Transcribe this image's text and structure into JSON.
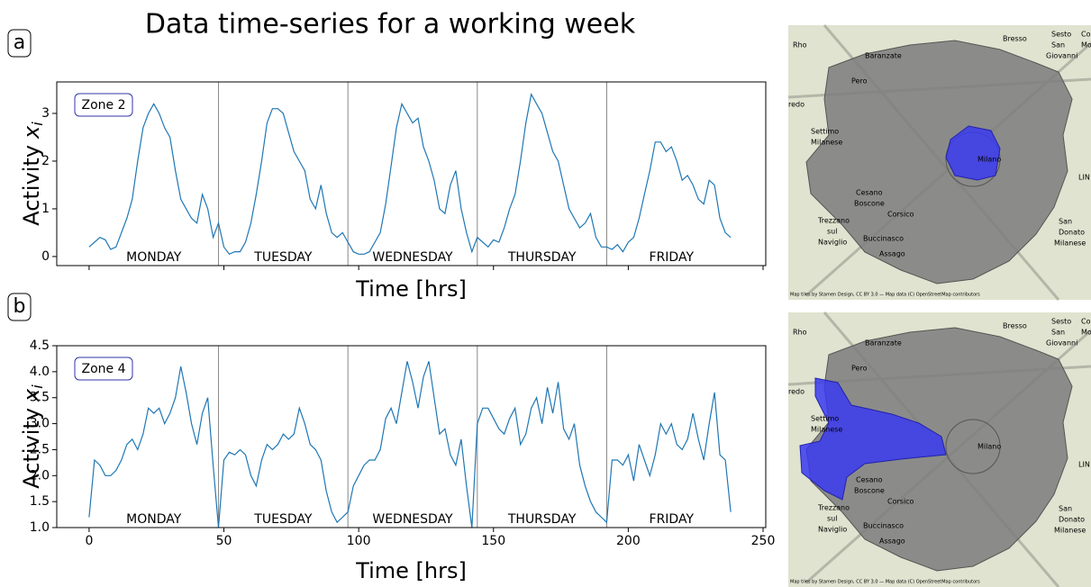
{
  "title": "Data time-series for a working week",
  "panel_labels": [
    "a",
    "b"
  ],
  "chart_data": [
    {
      "type": "line",
      "annotation": "Zone 2",
      "xlabel": "Time [hrs]",
      "ylabel": "Activity",
      "ylabel_var": "x",
      "ylabel_sub": "i",
      "color": "#1f77b4",
      "xlim": [
        -12,
        251
      ],
      "ylim": [
        -0.19,
        3.66
      ],
      "xticks": [
        0,
        50,
        100,
        150,
        200,
        250
      ],
      "show_xtick_labels": false,
      "yticks": [
        0,
        1,
        2,
        3
      ],
      "dividers": [
        48,
        96,
        144,
        192
      ],
      "day_labels": [
        "MONDAY",
        "TUESDAY",
        "WEDNESDAY",
        "THURSDAY",
        "FRIDAY"
      ],
      "x": [
        0,
        2,
        4,
        6,
        8,
        10,
        12,
        14,
        16,
        18,
        20,
        22,
        24,
        26,
        28,
        30,
        32,
        34,
        36,
        38,
        40,
        42,
        44,
        46,
        48,
        50,
        52,
        54,
        56,
        58,
        60,
        62,
        64,
        66,
        68,
        70,
        72,
        74,
        76,
        78,
        80,
        82,
        84,
        86,
        88,
        90,
        92,
        94,
        96,
        98,
        100,
        102,
        104,
        106,
        108,
        110,
        112,
        114,
        116,
        118,
        120,
        122,
        124,
        126,
        128,
        130,
        132,
        134,
        136,
        138,
        140,
        142,
        144,
        146,
        148,
        150,
        152,
        154,
        156,
        158,
        160,
        162,
        164,
        166,
        168,
        170,
        172,
        174,
        176,
        178,
        180,
        182,
        184,
        186,
        188,
        190,
        192,
        194,
        196,
        198,
        200,
        202,
        204,
        206,
        208,
        210,
        212,
        214,
        216,
        218,
        220,
        222,
        224,
        226,
        228,
        230,
        232,
        234,
        236,
        238
      ],
      "values": [
        0.2,
        0.3,
        0.4,
        0.35,
        0.15,
        0.2,
        0.5,
        0.8,
        1.2,
        2.0,
        2.7,
        3.0,
        3.2,
        3.0,
        2.7,
        2.5,
        1.8,
        1.2,
        1.0,
        0.8,
        0.7,
        1.3,
        1.0,
        0.4,
        0.7,
        0.2,
        0.05,
        0.1,
        0.1,
        0.3,
        0.7,
        1.3,
        2.0,
        2.8,
        3.1,
        3.1,
        3.0,
        2.6,
        2.2,
        2.0,
        1.8,
        1.2,
        1.0,
        1.5,
        0.9,
        0.5,
        0.4,
        0.5,
        0.3,
        0.1,
        0.05,
        0.05,
        0.1,
        0.3,
        0.5,
        1.1,
        1.9,
        2.7,
        3.2,
        3.0,
        2.8,
        2.9,
        2.3,
        2.0,
        1.6,
        1.0,
        0.9,
        1.5,
        1.8,
        1.0,
        0.5,
        0.1,
        0.4,
        0.3,
        0.2,
        0.35,
        0.3,
        0.6,
        1.0,
        1.3,
        2.0,
        2.8,
        3.4,
        3.2,
        3.0,
        2.6,
        2.2,
        2.0,
        1.5,
        1.0,
        0.8,
        0.6,
        0.7,
        0.9,
        0.4,
        0.2,
        0.2,
        0.15,
        0.25,
        0.1,
        0.3,
        0.4,
        0.8,
        1.3,
        1.8,
        2.4,
        2.4,
        2.2,
        2.3,
        2.0,
        1.6,
        1.7,
        1.5,
        1.2,
        1.1,
        1.6,
        1.5,
        0.8,
        0.5,
        0.4
      ]
    },
    {
      "type": "line",
      "annotation": "Zone 4",
      "xlabel": "Time [hrs]",
      "ylabel": "Activity",
      "ylabel_var": "x",
      "ylabel_sub": "i",
      "color": "#1f77b4",
      "xlim": [
        -12,
        251
      ],
      "ylim": [
        1.0,
        4.5
      ],
      "xticks": [
        0,
        50,
        100,
        150,
        200,
        250
      ],
      "show_xtick_labels": true,
      "yticks": [
        {
          "value": 1,
          "label": "1.0"
        },
        1.5,
        {
          "value": 2,
          "label": "2.0"
        },
        2.5,
        {
          "value": 3,
          "label": "3.0"
        },
        3.5,
        {
          "value": 4,
          "label": "4.0"
        },
        4.5
      ],
      "dividers": [
        48,
        96,
        144,
        192
      ],
      "day_labels": [
        "MONDAY",
        "TUESDAY",
        "WEDNESDAY",
        "THURSDAY",
        "FRIDAY"
      ],
      "x": [
        0,
        2,
        4,
        6,
        8,
        10,
        12,
        14,
        16,
        18,
        20,
        22,
        24,
        26,
        28,
        30,
        32,
        34,
        36,
        38,
        40,
        42,
        44,
        46,
        48,
        50,
        52,
        54,
        56,
        58,
        60,
        62,
        64,
        66,
        68,
        70,
        72,
        74,
        76,
        78,
        80,
        82,
        84,
        86,
        88,
        90,
        92,
        94,
        96,
        98,
        100,
        102,
        104,
        106,
        108,
        110,
        112,
        114,
        116,
        118,
        120,
        122,
        124,
        126,
        128,
        130,
        132,
        134,
        136,
        138,
        140,
        142,
        144,
        146,
        148,
        150,
        152,
        154,
        156,
        158,
        160,
        162,
        164,
        166,
        168,
        170,
        172,
        174,
        176,
        178,
        180,
        182,
        184,
        186,
        188,
        190,
        192,
        194,
        196,
        198,
        200,
        202,
        204,
        206,
        208,
        210,
        212,
        214,
        216,
        218,
        220,
        222,
        224,
        226,
        228,
        230,
        232,
        234,
        236,
        238
      ],
      "values": [
        1.2,
        2.3,
        2.2,
        2.0,
        2.0,
        2.1,
        2.3,
        2.6,
        2.7,
        2.5,
        2.8,
        3.3,
        3.2,
        3.3,
        3.0,
        3.2,
        3.5,
        4.1,
        3.6,
        3.0,
        2.6,
        3.2,
        3.5,
        2.2,
        1.0,
        2.3,
        2.45,
        2.4,
        2.5,
        2.4,
        2.0,
        1.8,
        2.3,
        2.6,
        2.5,
        2.6,
        2.8,
        2.7,
        2.8,
        3.3,
        3.0,
        2.6,
        2.5,
        2.3,
        1.7,
        1.3,
        1.1,
        1.2,
        1.3,
        1.8,
        2.0,
        2.2,
        2.3,
        2.3,
        2.5,
        3.1,
        3.3,
        3.0,
        3.6,
        4.2,
        3.8,
        3.3,
        3.9,
        4.2,
        3.5,
        2.8,
        2.9,
        2.4,
        2.2,
        2.7,
        1.8,
        1.0,
        3.0,
        3.3,
        3.3,
        3.1,
        2.9,
        2.8,
        3.1,
        3.3,
        2.6,
        2.8,
        3.3,
        3.5,
        3.0,
        3.7,
        3.2,
        3.8,
        2.9,
        2.7,
        3.0,
        2.2,
        1.8,
        1.5,
        1.3,
        1.2,
        1.1,
        2.3,
        2.3,
        2.2,
        2.4,
        1.9,
        2.6,
        2.3,
        2.0,
        2.4,
        3.0,
        2.8,
        3.0,
        2.6,
        2.5,
        2.7,
        3.2,
        2.7,
        2.3,
        3.0,
        3.6,
        2.4,
        2.3,
        1.3
      ]
    }
  ],
  "maps": [
    {
      "labels": [
        "Rho",
        "Bresso",
        "Sesto",
        "San",
        "Giovanni",
        "Cologno",
        "Monzese",
        "Baranzate",
        "Pero",
        "redo",
        "Settimo",
        "Milanese",
        "Milano",
        "Cesano",
        "Boscone",
        "Corsico",
        "Trezzano",
        "sul",
        "Naviglio",
        "Buccinasco",
        "Assago",
        "San",
        "Donato",
        "Milanese",
        "LIN",
        "Map tiles by Stamen Design, CC BY 3.0 — Map data (C) OpenStreetMap contributors"
      ]
    },
    {
      "labels": [
        "Rho",
        "Bresso",
        "Sesto",
        "San",
        "Giovanni",
        "Cologno",
        "Monzese",
        "Baranzate",
        "Pero",
        "redo",
        "Settimo",
        "Milanese",
        "Milano",
        "Cesano",
        "Boscone",
        "Corsico",
        "Trezzano",
        "sul",
        "Naviglio",
        "Buccinasco",
        "Assago",
        "San",
        "Donato",
        "Milanese",
        "LIN",
        "Map tiles by Stamen Design, CC BY 3.0 — Map data (C) OpenStreetMap contributors"
      ]
    }
  ]
}
